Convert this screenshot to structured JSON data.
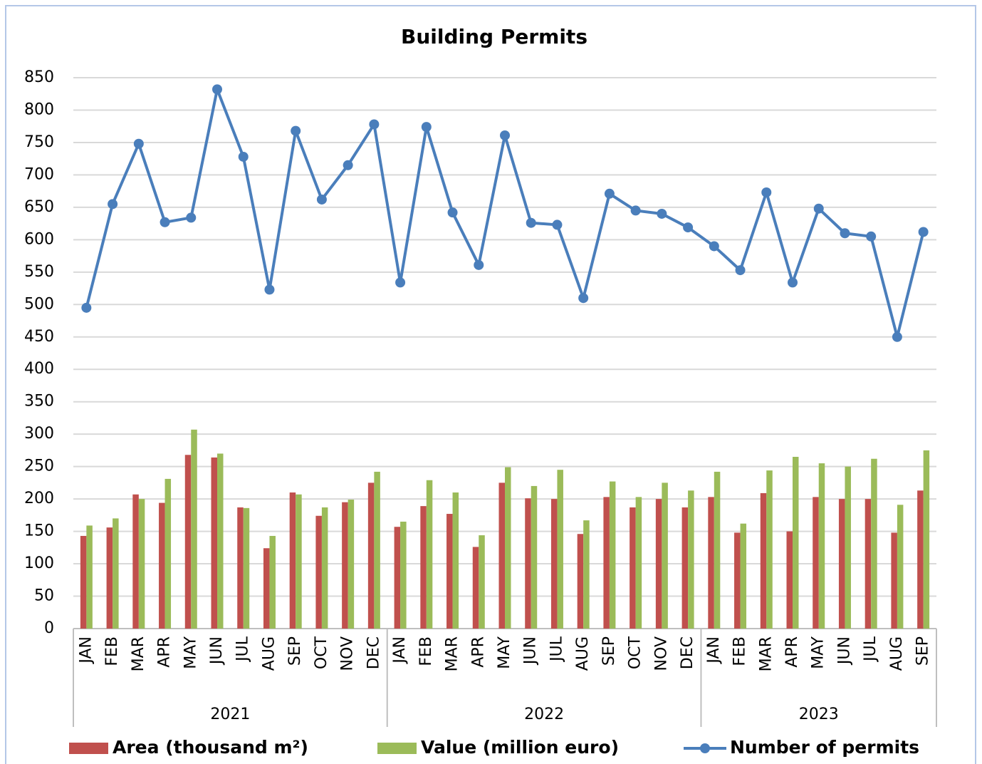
{
  "chart_data": {
    "type": "combo",
    "title": "Building Permits",
    "groups": [
      {
        "label": "2021",
        "categories": [
          "JAN",
          "FEB",
          "MAR",
          "APR",
          "MAY",
          "JUN",
          "JUL",
          "AUG",
          "SEP",
          "OCT",
          "NOV",
          "DEC"
        ]
      },
      {
        "label": "2022",
        "categories": [
          "JAN",
          "FEB",
          "MAR",
          "APR",
          "MAY",
          "JUN",
          "JUL",
          "AUG",
          "SEP",
          "OCT",
          "NOV",
          "DEC"
        ]
      },
      {
        "label": "2023",
        "categories": [
          "JAN",
          "FEB",
          "MAR",
          "APR",
          "MAY",
          "JUN",
          "JUL",
          "AUG",
          "SEP"
        ]
      }
    ],
    "series": [
      {
        "name": "Area (thousand m²)",
        "type": "bar",
        "color": "#c0504d",
        "values": [
          143,
          156,
          207,
          194,
          268,
          264,
          187,
          124,
          210,
          174,
          195,
          225,
          157,
          189,
          177,
          126,
          225,
          201,
          200,
          146,
          203,
          187,
          200,
          187,
          203,
          148,
          209,
          150,
          203,
          200,
          200,
          148,
          213
        ]
      },
      {
        "name": "Value (million euro)",
        "type": "bar",
        "color": "#9bbb59",
        "values": [
          159,
          170,
          200,
          231,
          307,
          270,
          186,
          143,
          207,
          187,
          199,
          242,
          165,
          229,
          210,
          144,
          249,
          220,
          245,
          167,
          227,
          203,
          225,
          213,
          242,
          162,
          244,
          265,
          255,
          250,
          262,
          191,
          275
        ]
      },
      {
        "name": "Number of permits",
        "type": "line",
        "color": "#4a7ebb",
        "values": [
          495,
          655,
          748,
          627,
          634,
          832,
          728,
          523,
          768,
          662,
          715,
          778,
          534,
          774,
          642,
          561,
          761,
          626,
          623,
          510,
          671,
          645,
          640,
          619,
          590,
          553,
          673,
          534,
          648,
          610,
          605,
          450,
          612
        ]
      }
    ],
    "ylim": [
      0,
      850
    ],
    "yticks": [
      0,
      50,
      100,
      150,
      200,
      250,
      300,
      350,
      400,
      450,
      500,
      550,
      600,
      650,
      700,
      750,
      800,
      850
    ],
    "grid": true,
    "legend": "bottom"
  }
}
